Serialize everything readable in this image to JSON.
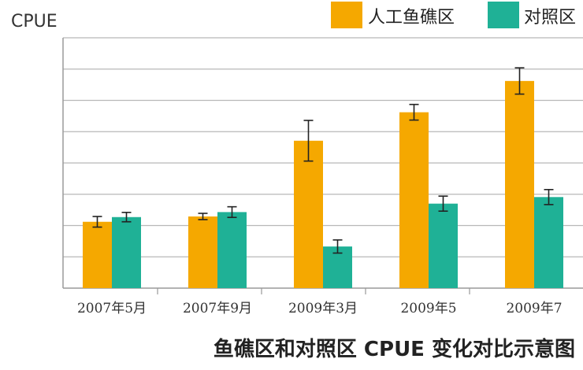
{
  "chart_data": {
    "type": "bar",
    "title": "鱼礁区和对照区 CPUE 变化对比示意图",
    "ylabel": "CPUE",
    "xlabel": "",
    "categories": [
      "2007年5月",
      "2007年9月",
      "2009年3月",
      "2009年5",
      "2009年7"
    ],
    "series": [
      {
        "name": "人工鱼礁区",
        "color": "#f5a800",
        "values": [
          2.12,
          2.29,
          4.71,
          5.62,
          6.62
        ],
        "errors": [
          0.17,
          0.1,
          0.65,
          0.25,
          0.42
        ]
      },
      {
        "name": "对照区",
        "color": "#1fb196",
        "values": [
          2.27,
          2.43,
          1.33,
          2.7,
          2.91
        ],
        "errors": [
          0.15,
          0.17,
          0.21,
          0.24,
          0.24
        ]
      }
    ],
    "ylim": [
      0,
      8
    ],
    "grid": true,
    "legend": "top-right"
  }
}
